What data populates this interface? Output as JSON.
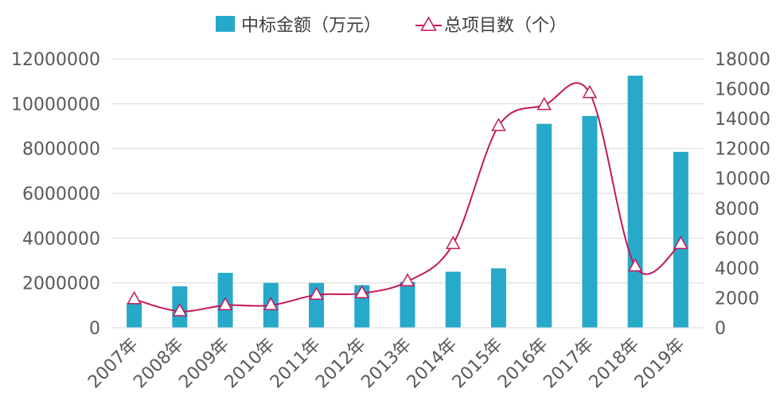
{
  "chart_data": {
    "type": "bar",
    "categories": [
      "2007年",
      "2008年",
      "2009年",
      "2010年",
      "2011年",
      "2012年",
      "2013年",
      "2014年",
      "2015年",
      "2016年",
      "2017年",
      "2018年",
      "2019年"
    ],
    "series": [
      {
        "name": "中标金额（万元）",
        "type": "bar",
        "axis": "left",
        "values": [
          1100000,
          1850000,
          2450000,
          2000000,
          2000000,
          1900000,
          2050000,
          2500000,
          2650000,
          9100000,
          9450000,
          11250000,
          7850000
        ]
      },
      {
        "name": "总项目数（个）",
        "type": "line",
        "axis": "right",
        "values": [
          1900,
          1100,
          1500,
          1500,
          2200,
          2300,
          3100,
          5600,
          13500,
          14900,
          15700,
          4100,
          5600
        ]
      }
    ],
    "left_axis": {
      "min": 0,
      "max": 12000000,
      "ticks": [
        "0",
        "2000000",
        "4000000",
        "6000000",
        "8000000",
        "10000000",
        "12000000"
      ]
    },
    "right_axis": {
      "min": 0,
      "max": 18000,
      "ticks": [
        "0",
        "2000",
        "4000",
        "6000",
        "8000",
        "10000",
        "12000",
        "14000",
        "16000",
        "18000"
      ]
    },
    "grid": true,
    "legend_position": "top-center",
    "colors": {
      "bar": "#27A9C9",
      "line": "#C2185B",
      "marker_fill": "#FFFFFF",
      "grid": "#D9D9D9",
      "text": "#595959"
    }
  }
}
